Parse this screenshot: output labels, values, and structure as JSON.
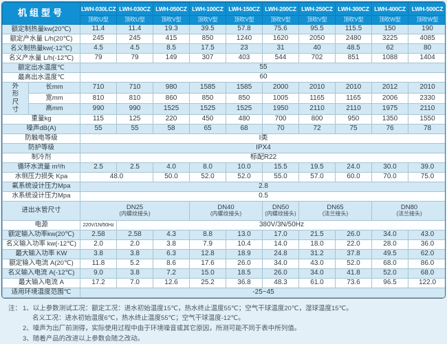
{
  "table": {
    "corner_label": "机组型号",
    "models": [
      "LWH-030LCZ",
      "LWH-030CZ",
      "LWH-050CZ",
      "LWH-100CZ",
      "LWH-150CZ",
      "LWH-200CZ",
      "LWH-250CZ",
      "LWH-300CZ",
      "LWH-400CZ",
      "LWH-500CZ"
    ],
    "types": [
      "顶吹U型",
      "顶吹U型",
      "顶吹V型",
      "顶吹V型",
      "顶吹V型",
      "顶吹V型",
      "顶吹V型",
      "顶吹V型",
      "顶吹W型",
      "顶吹W型"
    ],
    "rows": [
      {
        "label": "额定制热量kw(20℃)",
        "cells": [
          "11.4",
          "11.4",
          "19.3",
          "39.5",
          "57.8",
          "75.6",
          "95.5",
          "115.5",
          "150",
          "190"
        ]
      },
      {
        "label": "额定产水量 L/h(20℃)",
        "cells": [
          "245",
          "245",
          "415",
          "850",
          "1240",
          "1620",
          "2050",
          "2480",
          "3225",
          "4085"
        ]
      },
      {
        "label": "名义制热量kw(-12℃)",
        "cells": [
          "4.5",
          "4.5",
          "8.5",
          "17.5",
          "23",
          "31",
          "40",
          "48.5",
          "62",
          "80"
        ]
      },
      {
        "label": "名义产水量 L/h(-12℃)",
        "cells": [
          "79",
          "79",
          "149",
          "307",
          "403",
          "544",
          "702",
          "851",
          "1088",
          "1404"
        ]
      },
      {
        "label": "额定出水温度℃",
        "cells": [
          {
            "t": "55",
            "s": 10
          }
        ]
      },
      {
        "label": "最高出水温度℃",
        "cells": [
          {
            "t": "60",
            "s": 10
          }
        ]
      },
      {
        "group": "外形尺寸",
        "sublabel": "长mm",
        "cells": [
          "710",
          "710",
          "980",
          "1585",
          "1585",
          "2000",
          "2010",
          "2010",
          "2012",
          "2010"
        ]
      },
      {
        "sublabel": "宽mm",
        "cells": [
          "810",
          "810",
          "860",
          "850",
          "850",
          "1005",
          "1165",
          "1165",
          "2006",
          "2330"
        ]
      },
      {
        "sublabel": "高mm",
        "cells": [
          "990",
          "990",
          "1525",
          "1525",
          "1525",
          "1950",
          "2110",
          "2110",
          "1975",
          "2110"
        ]
      },
      {
        "label": "重量kg",
        "cells": [
          "115",
          "125",
          "220",
          "450",
          "480",
          "700",
          "800",
          "950",
          "1350",
          "1550"
        ]
      },
      {
        "label": "噪声dB(A)",
        "cells": [
          "55",
          "55",
          "58",
          "65",
          "68",
          "70",
          "72",
          "75",
          "76",
          "78"
        ]
      },
      {
        "label": "防触电等级",
        "cells": [
          {
            "t": "I类",
            "s": 10
          }
        ]
      },
      {
        "label": "防护等级",
        "cells": [
          {
            "t": "IPX4",
            "s": 10
          }
        ]
      },
      {
        "label": "制冷剂",
        "cells": [
          {
            "t": "标配R22",
            "s": 10
          }
        ]
      },
      {
        "label": "循环水流量 m³/h",
        "cells": [
          "2.5",
          "2.5",
          "4.0",
          "8.0",
          "10.0",
          "15.5",
          "19.5",
          "24.0",
          "30.0",
          "39.0"
        ]
      },
      {
        "label": "水侧压力损失 Kpa",
        "cells": [
          {
            "t": "48.0",
            "s": 2
          },
          "50.0",
          "52.0",
          "52.0",
          "55.0",
          "57.0",
          "60.0",
          "70.0",
          "75.0"
        ]
      },
      {
        "label": "氟系统设计压力Mpa",
        "cells": [
          {
            "t": "2.8",
            "s": 10
          }
        ]
      },
      {
        "label": "水系统设计压力Mpa",
        "cells": [
          {
            "t": "0.5",
            "s": 10
          }
        ]
      },
      {
        "label": "进出水管尺寸",
        "tall": true,
        "cells": [
          {
            "t": "DN25",
            "sub": "(内螺纹接头)",
            "s": 3
          },
          {
            "t": "DN40",
            "sub": "(内螺纹接头)",
            "s": 2
          },
          {
            "t": "DN50",
            "sub": "(内螺纹接头)",
            "s": 1
          },
          {
            "t": "DN65",
            "sub": "(法兰接头)",
            "s": 2
          },
          {
            "t": "DN80",
            "sub": "(法兰接头)",
            "s": 2
          }
        ]
      },
      {
        "label": "电源",
        "cells": [
          {
            "t": "220V/1N/50Hz",
            "s": 1,
            "small": true
          },
          {
            "t": "380V/3N/50Hz",
            "s": 9
          }
        ]
      },
      {
        "label": "额定输入功率kw(20℃)",
        "cells": [
          "2.58",
          "2.58",
          "4.3",
          "8.8",
          "13.0",
          "17.0",
          "21.5",
          "26.0",
          "34.0",
          "43.0"
        ]
      },
      {
        "label": "名义输入功率 kw(-12℃)",
        "cells": [
          "2.0",
          "2.0",
          "3.8",
          "7.9",
          "10.4",
          "14.0",
          "18.0",
          "22.0",
          "28.0",
          "36.0"
        ]
      },
      {
        "label": "最大输入功率 KW",
        "cells": [
          "3.8",
          "3.8",
          "6.3",
          "12.8",
          "18.9",
          "24.8",
          "31.2",
          "37.8",
          "49.5",
          "62.0"
        ]
      },
      {
        "label": "额定输入电流 A(20℃)",
        "cells": [
          "11.8",
          "5.2",
          "8.6",
          "17.6",
          "26.0",
          "34.0",
          "43.0",
          "52.0",
          "68.0",
          "86.0"
        ]
      },
      {
        "label": "名义输入电流 A(-12℃)",
        "cells": [
          "9.0",
          "3.8",
          "7.2",
          "15.0",
          "18.5",
          "26.0",
          "34.0",
          "41.8",
          "52.0",
          "68.0"
        ]
      },
      {
        "label": "最大输入电流 A",
        "cells": [
          "17.2",
          "7.0",
          "12.6",
          "25.2",
          "36.8",
          "48.3",
          "61.0",
          "73.6",
          "96.5",
          "122.0"
        ]
      },
      {
        "label": "适用环境温度范围℃",
        "cells": [
          {
            "t": "-25~45",
            "s": 10
          }
        ]
      }
    ]
  },
  "notes": {
    "prefix": "注：",
    "lines": [
      "1、以上参数测试工况：额定工况：进水初始温度15℃，热水终止温度55℃；空气干球温度20℃，湿球温度15℃。",
      "名义工况：进水初始温度6℃，热水终止温度55℃；空气干球温度-12℃。",
      "2、噪声为出厂前测得，实际使用过程中由于环境噪音或其它原因，所测可能不同于表中所列值。",
      "3、随着产品的改进以上参数会随之改动。"
    ]
  },
  "colors": {
    "header_blue": "#1191d3",
    "stripe_blue": "#d2e8f4",
    "row_white": "#fcfeff",
    "grid_line": "#a9c3d1",
    "outer_border": "#46626f",
    "page_bg": "#e4f0f8"
  }
}
